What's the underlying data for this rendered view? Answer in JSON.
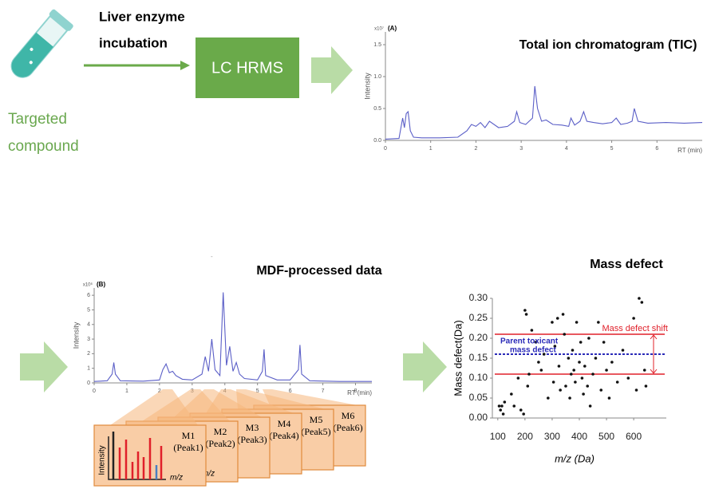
{
  "workflow": {
    "compound_lines": [
      "Targeted",
      "compound"
    ],
    "incubation_lines": [
      "Liver enzyme",
      "incubation"
    ],
    "instrument": "LC HRMS"
  },
  "chart_data": [
    {
      "type": "line",
      "title": "Total ion chromatogram (TIC)",
      "panel_label": "(A)",
      "y_scale_label": "x10⁷",
      "y_label": "Intensity",
      "x_label": "RT (min)",
      "x": [
        0,
        0.3,
        0.38,
        0.42,
        0.46,
        0.5,
        0.55,
        0.62,
        0.8,
        1.2,
        1.6,
        1.8,
        1.9,
        2.0,
        2.1,
        2.2,
        2.3,
        2.5,
        2.7,
        2.85,
        2.9,
        2.97,
        3.1,
        3.25,
        3.3,
        3.36,
        3.45,
        3.55,
        3.7,
        3.9,
        4.05,
        4.1,
        4.18,
        4.3,
        4.38,
        4.45,
        4.6,
        4.8,
        5.0,
        5.1,
        5.2,
        5.35,
        5.45,
        5.5,
        5.58,
        5.8,
        6.2,
        6.6,
        7.0
      ],
      "values": [
        0.02,
        0.03,
        0.35,
        0.2,
        0.42,
        0.45,
        0.15,
        0.05,
        0.04,
        0.04,
        0.05,
        0.15,
        0.25,
        0.22,
        0.28,
        0.2,
        0.3,
        0.2,
        0.22,
        0.3,
        0.45,
        0.28,
        0.25,
        0.35,
        0.85,
        0.5,
        0.3,
        0.32,
        0.25,
        0.24,
        0.22,
        0.35,
        0.24,
        0.3,
        0.45,
        0.3,
        0.28,
        0.26,
        0.28,
        0.35,
        0.25,
        0.27,
        0.3,
        0.5,
        0.3,
        0.27,
        0.28,
        0.27,
        0.28
      ],
      "color": "#5b5fc7",
      "xlim": [
        0,
        7
      ],
      "ylim": [
        0,
        1.7
      ],
      "xticks": [
        0,
        1,
        2,
        3,
        4,
        5,
        6
      ],
      "yticks": [
        {
          "value": 0,
          "label": "0.0"
        },
        {
          "value": 0.5,
          "label": "0.5"
        },
        {
          "value": 1,
          "label": "1.0"
        },
        {
          "value": 1.5,
          "label": "1.5"
        }
      ]
    },
    {
      "type": "line",
      "title": "MDF-processed data",
      "panel_label": "(B)",
      "y_scale_label": "x10⁶",
      "y_label": "Intensity",
      "x_label": "RT (min)",
      "x": [
        0,
        0.4,
        0.55,
        0.6,
        0.65,
        0.8,
        1.5,
        2.0,
        2.1,
        2.2,
        2.3,
        2.4,
        2.5,
        2.7,
        3.0,
        3.3,
        3.4,
        3.5,
        3.6,
        3.7,
        3.85,
        3.95,
        4.05,
        4.15,
        4.25,
        4.35,
        4.45,
        4.6,
        5.0,
        5.15,
        5.2,
        5.25,
        5.6,
        6.0,
        6.25,
        6.3,
        6.35,
        6.6,
        7.5,
        8.5
      ],
      "values": [
        0.1,
        0.15,
        0.6,
        1.4,
        0.6,
        0.15,
        0.12,
        0.2,
        0.9,
        1.3,
        0.7,
        0.8,
        0.5,
        0.25,
        0.2,
        0.6,
        1.8,
        0.8,
        3.0,
        0.9,
        0.5,
        6.2,
        1.2,
        2.5,
        0.8,
        1.4,
        0.6,
        0.3,
        0.2,
        0.8,
        2.3,
        0.5,
        0.2,
        0.2,
        0.9,
        2.6,
        0.6,
        0.15,
        0.1,
        0.1
      ],
      "color": "#5b5fc7",
      "xlim": [
        0,
        8.5
      ],
      "ylim": [
        0,
        6.5
      ],
      "xticks": [
        0,
        1,
        2,
        3,
        4,
        5,
        6,
        7,
        8
      ],
      "yticks": [
        0,
        1,
        2,
        3,
        4,
        5,
        6
      ],
      "cards": [
        {
          "name": "M1",
          "peak": "(Peak1)"
        },
        {
          "name": "M2",
          "peak": "(Peak2)"
        },
        {
          "name": "M3",
          "peak": "(Peak3)"
        },
        {
          "name": "M4",
          "peak": "(Peak4)"
        },
        {
          "name": "M5",
          "peak": "(Peak5)"
        },
        {
          "name": "M6",
          "peak": "(Peak6)"
        }
      ],
      "card_y_label": "Intensity",
      "card_x_label": "m/z"
    },
    {
      "type": "scatter",
      "title": "Mass defect",
      "y_label": "Mass defect(Da)",
      "x_label": "m/z (Da)",
      "x": [
        105,
        110,
        115,
        120,
        125,
        150,
        160,
        175,
        185,
        195,
        200,
        205,
        210,
        215,
        225,
        240,
        250,
        260,
        270,
        285,
        300,
        305,
        310,
        320,
        325,
        330,
        340,
        345,
        350,
        360,
        365,
        370,
        375,
        380,
        385,
        390,
        400,
        405,
        410,
        415,
        420,
        430,
        435,
        440,
        450,
        460,
        470,
        480,
        490,
        500,
        510,
        520,
        540,
        560,
        580,
        600,
        610,
        620,
        630,
        640,
        645
      ],
      "values": [
        0.03,
        0.02,
        0.03,
        0.01,
        0.04,
        0.06,
        0.03,
        0.1,
        0.02,
        0.01,
        0.27,
        0.26,
        0.08,
        0.11,
        0.22,
        0.19,
        0.14,
        0.12,
        0.16,
        0.05,
        0.24,
        0.09,
        0.18,
        0.25,
        0.13,
        0.07,
        0.26,
        0.21,
        0.08,
        0.15,
        0.05,
        0.11,
        0.17,
        0.12,
        0.09,
        0.24,
        0.14,
        0.19,
        0.1,
        0.06,
        0.13,
        0.08,
        0.2,
        0.03,
        0.11,
        0.15,
        0.24,
        0.07,
        0.19,
        0.12,
        0.05,
        0.14,
        0.09,
        0.17,
        0.1,
        0.25,
        0.07,
        0.3,
        0.29,
        0.12,
        0.08
      ],
      "color": "#111111",
      "xlim": [
        80,
        720
      ],
      "ylim": [
        0,
        0.3
      ],
      "xticks": [
        100,
        200,
        300,
        400,
        500,
        600
      ],
      "yticks": [
        {
          "value": 0,
          "label": "0.00"
        },
        {
          "value": 0.05,
          "label": "0.05"
        },
        {
          "value": 0.1,
          "label": "0.10"
        },
        {
          "value": 0.15,
          "label": "0.15"
        },
        {
          "value": 0.2,
          "label": "0.20"
        },
        {
          "value": 0.25,
          "label": "0.25"
        },
        {
          "value": 0.3,
          "label": "0.30"
        }
      ],
      "reference_lines": [
        {
          "value": 0.21,
          "color": "#e0202a",
          "style": "solid"
        },
        {
          "value": 0.11,
          "color": "#e0202a",
          "style": "solid"
        },
        {
          "value": 0.16,
          "color": "#2a2ab8",
          "style": "dashed"
        }
      ],
      "shift_label": "Mass defect shift",
      "parent_label_lines": [
        "Parent toxicant",
        "mass defect"
      ]
    }
  ]
}
